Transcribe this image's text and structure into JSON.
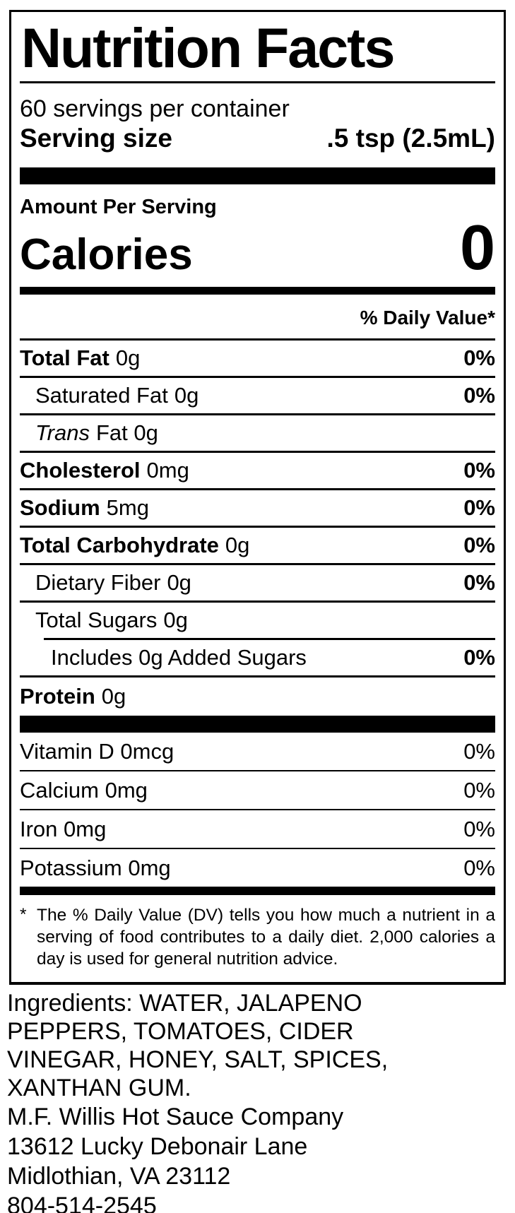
{
  "label": {
    "title": "Nutrition Facts",
    "servings_per_container": "60 servings per container",
    "serving_size_label": "Serving size",
    "serving_size_value": ".5 tsp (2.5mL)",
    "amount_per_serving": "Amount Per Serving",
    "calories_label": "Calories",
    "calories_value": "0",
    "daily_value_header": "% Daily Value*",
    "nutrients": [
      {
        "name": "Total Fat",
        "amount": "0g",
        "dv": "0%"
      },
      {
        "name": "Saturated Fat",
        "amount": "0g",
        "dv": "0%"
      },
      {
        "name": "Trans",
        "amount": "Fat 0g",
        "dv": ""
      },
      {
        "name": "Cholesterol",
        "amount": "0mg",
        "dv": "0%"
      },
      {
        "name": "Sodium",
        "amount": "5mg",
        "dv": "0%"
      },
      {
        "name": "Total Carbohydrate",
        "amount": "0g",
        "dv": "0%"
      },
      {
        "name": "Dietary Fiber",
        "amount": "0g",
        "dv": "0%"
      },
      {
        "name": "Total Sugars",
        "amount": "0g",
        "dv": ""
      },
      {
        "name": "Includes 0g Added Sugars",
        "amount": "",
        "dv": "0%"
      },
      {
        "name": "Protein",
        "amount": "0g",
        "dv": ""
      }
    ],
    "vitamins": [
      {
        "name": "Vitamin D 0mcg",
        "dv": "0%"
      },
      {
        "name": "Calcium 0mg",
        "dv": "0%"
      },
      {
        "name": "Iron 0mg",
        "dv": "0%"
      },
      {
        "name": "Potassium 0mg",
        "dv": "0%"
      }
    ],
    "footnote_marker": "*",
    "footnote": "The % Daily Value (DV) tells you how much a nutrient in a serving of food contributes to a daily diet. 2,000 calories a day is used for general nutrition advice."
  },
  "ingredients": {
    "text": "Ingredients: WATER, JALAPENO PEPPERS, TOMATOES, CIDER VINEGAR, HONEY, SALT, SPICES, XANTHAN GUM."
  },
  "company": {
    "lines": [
      "M.F. Willis Hot Sauce Company",
      "13612 Lucky Debonair Lane",
      "Midlothian, VA 23112",
      "804-514-2545"
    ]
  },
  "colors": {
    "ink": "#000000",
    "paper": "#ffffff"
  }
}
